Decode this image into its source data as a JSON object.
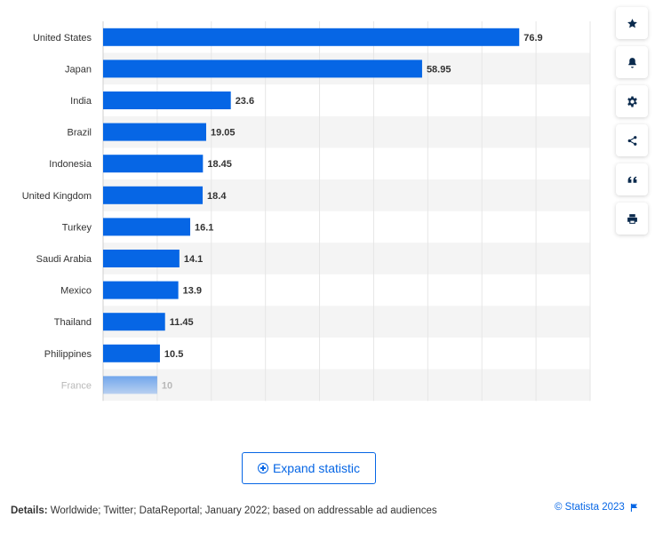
{
  "chart_data": {
    "type": "bar",
    "orientation": "horizontal",
    "categories": [
      "United States",
      "Japan",
      "India",
      "Brazil",
      "Indonesia",
      "United Kingdom",
      "Turkey",
      "Saudi Arabia",
      "Mexico",
      "Thailand",
      "Philippines",
      "France"
    ],
    "values": [
      76.9,
      58.95,
      23.6,
      19.05,
      18.45,
      18.4,
      16.1,
      14.1,
      13.9,
      11.45,
      10.5,
      10
    ],
    "value_labels": [
      "76.9",
      "58.95",
      "23.6",
      "19.05",
      "18.45",
      "18.4",
      "16.1",
      "14.1",
      "13.9",
      "11.45",
      "10.5",
      "10"
    ],
    "xlim": [
      0,
      90
    ],
    "grid": true,
    "bar_color": "#0666e5",
    "faded_last_row": true
  },
  "toolbar": {
    "buttons": [
      {
        "icon": "star-icon"
      },
      {
        "icon": "bell-icon"
      },
      {
        "icon": "gear-icon"
      },
      {
        "icon": "share-icon"
      },
      {
        "icon": "quote-icon"
      },
      {
        "icon": "print-icon"
      }
    ]
  },
  "expand": {
    "label": "Expand statistic"
  },
  "footer": {
    "details_label": "Details:",
    "details_text": " Worldwide; Twitter; DataReportal; January 2022; based on addressable ad audiences",
    "copyright": "© Statista 2023"
  },
  "colors": {
    "accent": "#0666e5",
    "stripe": "#f4f4f4",
    "grid": "#e6e6e6"
  }
}
